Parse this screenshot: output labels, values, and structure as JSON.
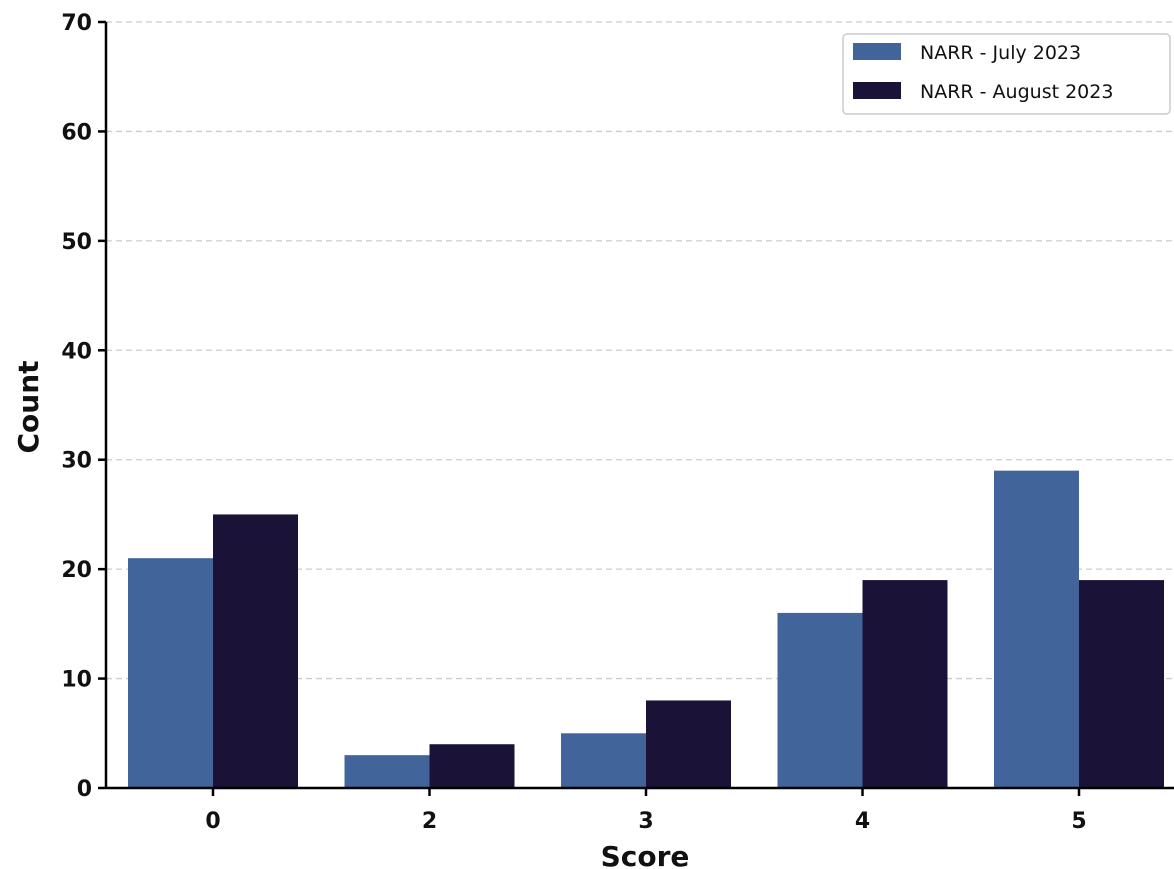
{
  "chart_data": {
    "type": "bar",
    "title": "",
    "xlabel": "Score",
    "ylabel": "Count",
    "categories": [
      "0",
      "2",
      "3",
      "4",
      "5"
    ],
    "series": [
      {
        "name": "NARR - July 2023",
        "values": [
          21,
          3,
          5,
          16,
          29
        ],
        "color": "#41659a"
      },
      {
        "name": "NARR - August 2023",
        "values": [
          25,
          4,
          8,
          19,
          19
        ],
        "color": "#1b1238"
      }
    ],
    "ylim": [
      0,
      70
    ],
    "yticks": [
      "0",
      "10",
      "20",
      "30",
      "40",
      "50",
      "60",
      "70"
    ],
    "grid": "horizontal dashed",
    "legend_position": "top-right"
  }
}
